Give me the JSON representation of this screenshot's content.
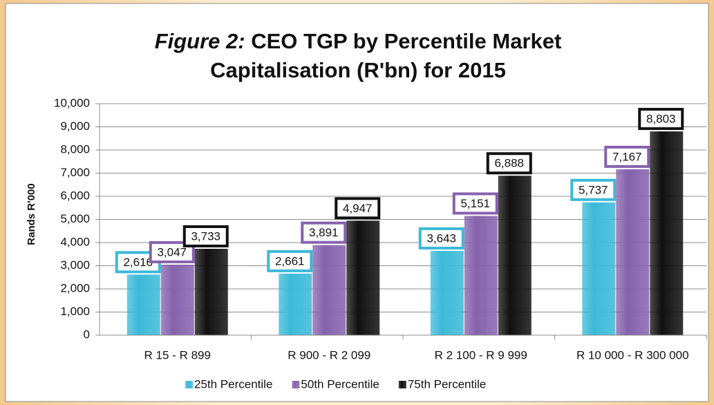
{
  "chart_data": {
    "type": "bar",
    "title_prefix": "Figure 2:",
    "title": [
      "CEO TGP by Percentile Market",
      "Capitalisation  (R'bn) for 2015"
    ],
    "y_label": "Rands R'000",
    "categories": [
      "R 15 - R 899",
      "R 900 - R 2 099",
      "R 2 100 - R 9 999",
      "R 10 000 - R 300 000"
    ],
    "series": [
      {
        "name": "25th Percentile",
        "color": "#3bb9d8",
        "values": [
          2616,
          2661,
          3643,
          5737
        ],
        "value_labels": [
          "2,616",
          "2,661",
          "3,643",
          "5,737"
        ]
      },
      {
        "name": "50th Percentile",
        "color": "#8662ad",
        "values": [
          3047,
          3891,
          5151,
          7167
        ],
        "value_labels": [
          "3,047",
          "3,891",
          "5,151",
          "7,167"
        ]
      },
      {
        "name": "75th Percentile",
        "color": "#111111",
        "values": [
          3733,
          4947,
          6888,
          8803
        ],
        "value_labels": [
          "3,733",
          "4,947",
          "6,888",
          "8,803"
        ]
      }
    ],
    "ylim": [
      0,
      10000
    ],
    "yticks": [
      0,
      {
        "value": 1000,
        "label": "1,000"
      },
      {
        "value": 2000,
        "label": "2,000"
      },
      {
        "value": 3000,
        "label": "3,000"
      },
      {
        "value": 4000,
        "label": "4,000"
      },
      {
        "value": 5000,
        "label": "5,000"
      },
      {
        "value": 6000,
        "label": "6,000"
      },
      {
        "value": 7000,
        "label": "7,000"
      },
      {
        "value": 8000,
        "label": "8,000"
      },
      {
        "value": 9000,
        "label": "9,000"
      },
      {
        "value": 10000,
        "label": "10,000"
      }
    ],
    "grid": true,
    "legend": "bottom"
  }
}
